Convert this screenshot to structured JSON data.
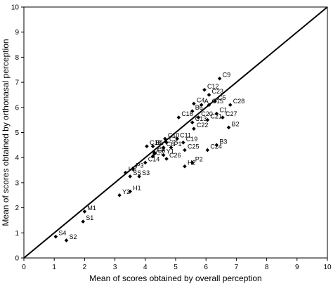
{
  "chart_data": {
    "type": "scatter",
    "title": "",
    "xlabel": "Mean of scores obtained by overall perception",
    "ylabel": "Mean of scores obtained by orthonasal perception",
    "xlim": [
      0,
      10
    ],
    "ylim": [
      0,
      10
    ],
    "x_ticks": [
      "0",
      "1",
      "2",
      "3",
      "4",
      "5",
      "6",
      "7",
      "8",
      "9",
      "10"
    ],
    "y_ticks": [
      "0",
      "1",
      "2",
      "3",
      "4",
      "5",
      "6",
      "7",
      "8",
      "9",
      "10"
    ],
    "grid": false,
    "reference_line": {
      "from": [
        0,
        0
      ],
      "to": [
        10,
        10
      ]
    },
    "points": [
      {
        "label": "C9",
        "x": 6.45,
        "y": 7.15
      },
      {
        "label": "C12",
        "x": 5.95,
        "y": 6.7
      },
      {
        "label": "C23",
        "x": 6.1,
        "y": 6.5
      },
      {
        "label": "C4",
        "x": 5.6,
        "y": 6.15
      },
      {
        "label": "A",
        "x": 5.85,
        "y": 6.1
      },
      {
        "label": "C15",
        "x": 6.1,
        "y": 6.1
      },
      {
        "label": "C5",
        "x": 6.3,
        "y": 6.25
      },
      {
        "label": "C28",
        "x": 6.8,
        "y": 6.1
      },
      {
        "label": "B6",
        "x": 5.55,
        "y": 5.85
      },
      {
        "label": "C16",
        "x": 5.1,
        "y": 5.6
      },
      {
        "label": "C20",
        "x": 5.75,
        "y": 5.6
      },
      {
        "label": "C1",
        "x": 6.35,
        "y": 5.75
      },
      {
        "label": "C27",
        "x": 6.55,
        "y": 5.6
      },
      {
        "label": "C21",
        "x": 6.05,
        "y": 5.5
      },
      {
        "label": "C13",
        "x": 5.55,
        "y": 5.4
      },
      {
        "label": "C22",
        "x": 5.6,
        "y": 5.15
      },
      {
        "label": "B2",
        "x": 6.75,
        "y": 5.2
      },
      {
        "label": "C10",
        "x": 4.65,
        "y": 4.75
      },
      {
        "label": "C11",
        "x": 5.05,
        "y": 4.75
      },
      {
        "label": "C3",
        "x": 4.7,
        "y": 4.6
      },
      {
        "label": "C19",
        "x": 5.25,
        "y": 4.6
      },
      {
        "label": "C18",
        "x": 4.05,
        "y": 4.45
      },
      {
        "label": "B1",
        "x": 4.25,
        "y": 4.45
      },
      {
        "label": "C6",
        "x": 4.6,
        "y": 4.4
      },
      {
        "label": "P1",
        "x": 4.85,
        "y": 4.4
      },
      {
        "label": "B3",
        "x": 6.35,
        "y": 4.5
      },
      {
        "label": "C24",
        "x": 6.05,
        "y": 4.3
      },
      {
        "label": "C25",
        "x": 5.3,
        "y": 4.3
      },
      {
        "label": "C2",
        "x": 4.3,
        "y": 4.2
      },
      {
        "label": "C7",
        "x": 4.25,
        "y": 4.05
      },
      {
        "label": "C8",
        "x": 4.3,
        "y": 4.15
      },
      {
        "label": "Y1",
        "x": 4.6,
        "y": 4.1
      },
      {
        "label": "C26",
        "x": 4.7,
        "y": 3.95
      },
      {
        "label": "C14",
        "x": 4.0,
        "y": 3.8
      },
      {
        "label": "P2",
        "x": 5.55,
        "y": 3.8
      },
      {
        "label": "H2",
        "x": 5.3,
        "y": 3.65
      },
      {
        "label": "P3",
        "x": 3.6,
        "y": 3.55
      },
      {
        "label": "H3",
        "x": 3.35,
        "y": 3.4
      },
      {
        "label": "S3",
        "x": 3.8,
        "y": 3.25
      },
      {
        "label": "SS",
        "x": 3.5,
        "y": 3.25
      },
      {
        "label": "H1",
        "x": 3.5,
        "y": 2.65
      },
      {
        "label": "Y2",
        "x": 3.15,
        "y": 2.5
      },
      {
        "label": "M1",
        "x": 2.0,
        "y": 1.85
      },
      {
        "label": "S1",
        "x": 1.95,
        "y": 1.45
      },
      {
        "label": "S4",
        "x": 1.05,
        "y": 0.85
      },
      {
        "label": "S2",
        "x": 1.4,
        "y": 0.7
      }
    ]
  }
}
